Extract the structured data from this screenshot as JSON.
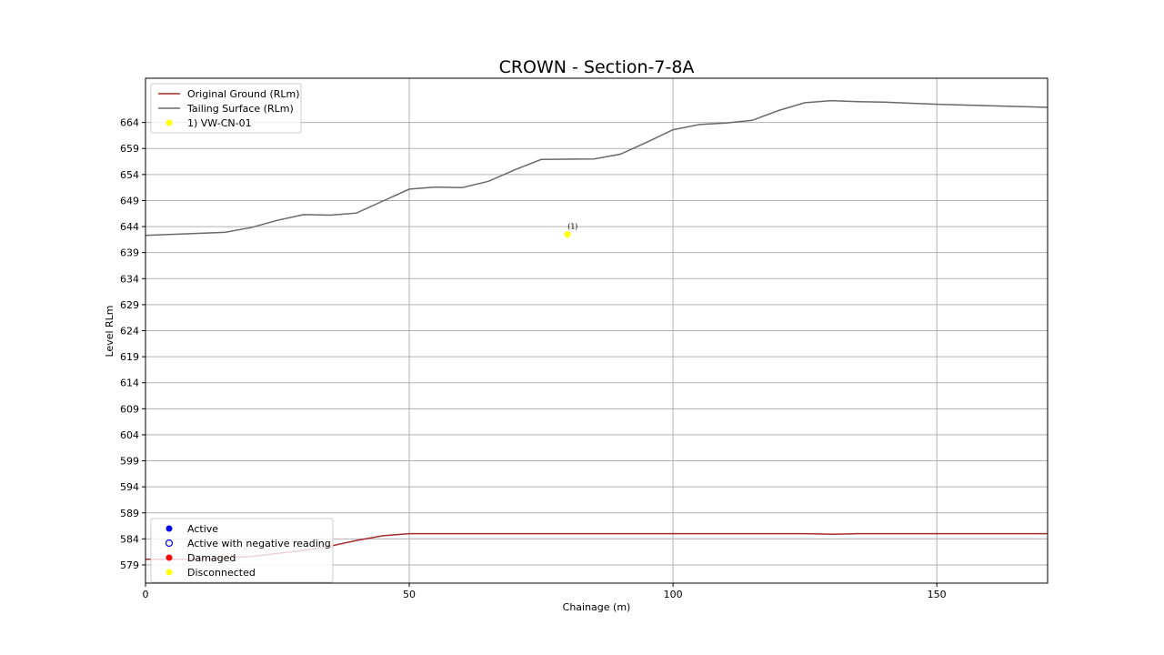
{
  "chart_data": {
    "type": "line",
    "title": "CROWN - Section-7-8A",
    "xlabel": "Chainage (m)",
    "ylabel": "Level RLm",
    "xlim": [
      0,
      171
    ],
    "ylim": [
      575.5,
      672.5
    ],
    "xticks": [
      0,
      50,
      100,
      150
    ],
    "yticks": [
      579,
      584,
      589,
      594,
      599,
      604,
      609,
      614,
      619,
      624,
      629,
      634,
      639,
      644,
      649,
      654,
      659,
      664
    ],
    "grid": true,
    "series": [
      {
        "name": "Original Ground (RLm)",
        "color": "#a52a2a",
        "x": [
          0,
          10,
          20,
          25,
          30,
          35,
          40,
          45,
          50,
          60,
          70,
          80,
          90,
          100,
          110,
          120,
          125,
          130,
          135,
          140,
          150,
          160,
          171
        ],
        "y": [
          580.1,
          580.1,
          580.6,
          581.2,
          581.8,
          582.6,
          583.7,
          584.6,
          585.0,
          585.0,
          585.0,
          585.0,
          585.0,
          585.0,
          585.0,
          585.0,
          585.0,
          584.9,
          585.0,
          585.0,
          585.0,
          585.0,
          585.0
        ]
      },
      {
        "name": "Tailing Surface (RLm)",
        "color": "#696969",
        "x": [
          0,
          15,
          20,
          25,
          30,
          35,
          40,
          45,
          50,
          55,
          60,
          65,
          70,
          75,
          85,
          90,
          95,
          100,
          105,
          110,
          115,
          120,
          125,
          130,
          135,
          140,
          150,
          160,
          171
        ],
        "y": [
          642.3,
          642.9,
          643.8,
          645.2,
          646.3,
          646.2,
          646.6,
          648.9,
          651.2,
          651.6,
          651.5,
          652.7,
          654.9,
          656.9,
          657.0,
          657.9,
          660.2,
          662.6,
          663.6,
          663.9,
          664.4,
          666.3,
          667.8,
          668.2,
          668.0,
          667.9,
          667.5,
          667.2,
          666.9
        ]
      }
    ],
    "points": [
      {
        "name": "1) VW-CN-01",
        "label": "(1)",
        "x": 80,
        "y": 642.5,
        "status": "Disconnected",
        "color": "#ffff00"
      }
    ],
    "legend_series": {
      "placement": "top-left",
      "entries": [
        {
          "label": "Original Ground (RLm)",
          "kind": "line",
          "color": "#a52a2a"
        },
        {
          "label": "Tailing Surface (RLm)",
          "kind": "line",
          "color": "#696969"
        },
        {
          "label": "1) VW-CN-01",
          "kind": "dot",
          "color": "#ffff00"
        }
      ]
    },
    "legend_status": {
      "placement": "bottom-left",
      "entries": [
        {
          "label": "Active",
          "kind": "dot",
          "color": "#0000ff"
        },
        {
          "label": "Active with negative reading",
          "kind": "ring",
          "color": "#0000ff"
        },
        {
          "label": "Damaged",
          "kind": "dot",
          "color": "#ff0000"
        },
        {
          "label": "Disconnected",
          "kind": "dot",
          "color": "#ffff00"
        }
      ]
    }
  }
}
